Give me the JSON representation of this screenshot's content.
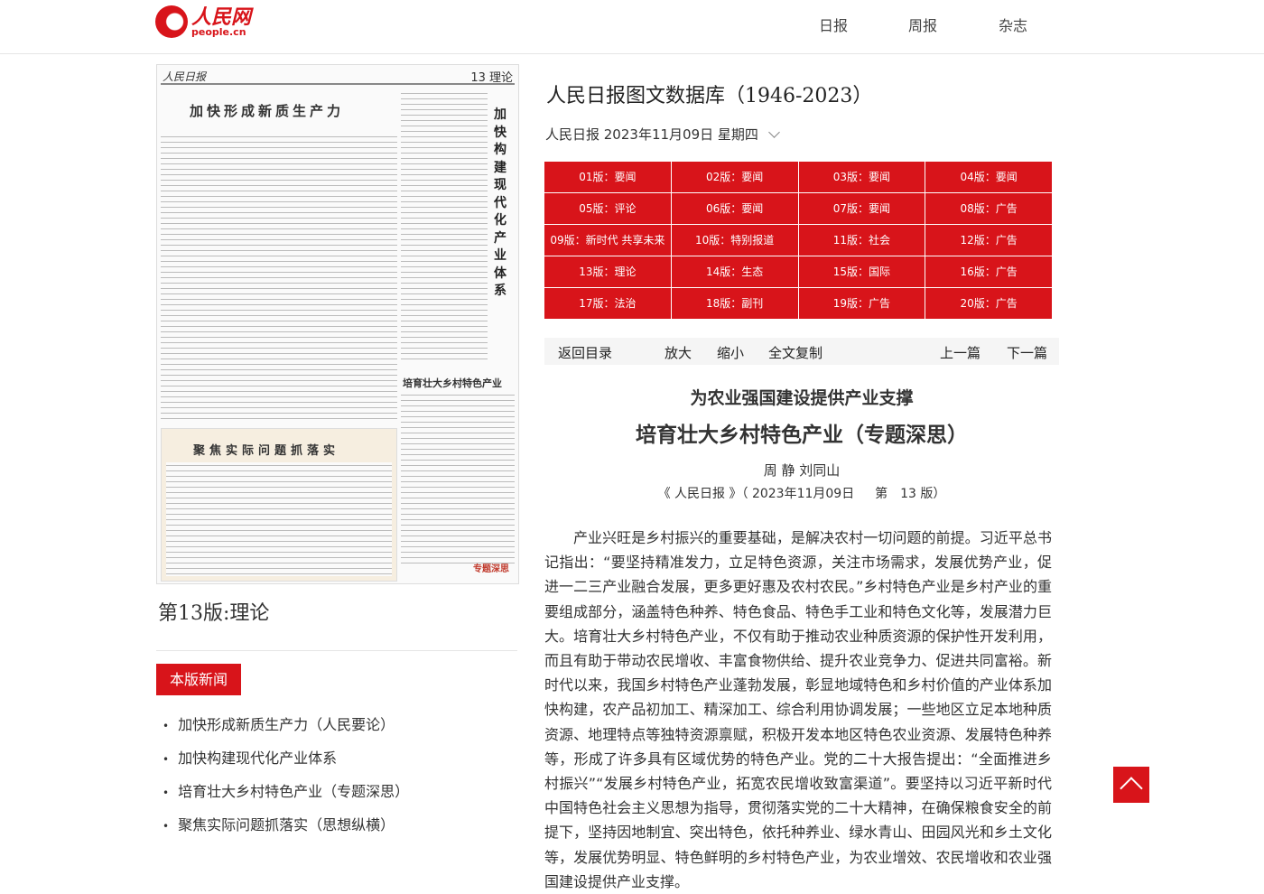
{
  "header": {
    "logo_cn": "人民网",
    "logo_en": "people.cn",
    "nav": [
      "日报",
      "周报",
      "杂志"
    ]
  },
  "paper": {
    "masthead": "人民日报",
    "page_label": "13 理论",
    "headline1": "加快形成新质生产力",
    "vertical": "加快构建现代化产业体系",
    "headline2": "培育壮大乡村特色产业",
    "headline3": "聚焦实际问题抓落实",
    "tag": "专题深思"
  },
  "left": {
    "page_title": "第13版:理论",
    "news_button": "本版新闻",
    "news": [
      "加快形成新质生产力（人民要论）",
      "加快构建现代化产业体系",
      "培育壮大乡村特色产业（专题深思）",
      "聚焦实际问题抓落实（思想纵横）"
    ]
  },
  "main": {
    "db_title": "人民日报图文数据库（1946-2023）",
    "dateline": "人民日报  2023年11月09日  星期四",
    "editions": [
      "01版：要闻",
      "02版：要闻",
      "03版：要闻",
      "04版：要闻",
      "05版：评论",
      "06版：要闻",
      "07版：要闻",
      "08版：广告",
      "09版：新时代 共享未来",
      "10版：特别报道",
      "11版：社会",
      "12版：广告",
      "13版：理论",
      "14版：生态",
      "15版：国际",
      "16版：广告",
      "17版：法治",
      "18版：副刊",
      "19版：广告",
      "20版：广告"
    ],
    "toolbar": {
      "back": "返回目录",
      "zoom_in": "放大",
      "zoom_out": "缩小",
      "copy": "全文复制",
      "prev": "上一篇",
      "next": "下一篇"
    },
    "subtitle": "为农业强国建设提供产业支撑",
    "title": "培育壮大乡村特色产业（专题深思）",
    "authors": "周 静 刘同山",
    "source": "《 人民日报 》（ 2023年11月09日 　 第　13 版）",
    "body": "产业兴旺是乡村振兴的重要基础，是解决农村一切问题的前提。习近平总书记指出：“要坚持精准发力，立足特色资源，关注市场需求，发展优势产业，促进一二三产业融合发展，更多更好惠及农村农民。”乡村特色产业是乡村产业的重要组成部分，涵盖特色种养、特色食品、特色手工业和特色文化等，发展潜力巨大。培育壮大乡村特色产业，不仅有助于推动农业种质资源的保护性开发利用，而且有助于带动农民增收、丰富食物供给、提升农业竞争力、促进共同富裕。新时代以来，我国乡村特色产业蓬勃发展，彰显地域特色和乡村价值的产业体系加快构建，农产品初加工、精深加工、综合利用协调发展；一些地区立足本地种质资源、地理特点等独特资源禀赋，积极开发本地区特色农业资源、发展特色种养等，形成了许多具有区域优势的特色产业。党的二十大报告提出：“全面推进乡村振兴”“发展乡村特色产业，拓宽农民增收致富渠道”。要坚持以习近平新时代中国特色社会主义思想为指导，贯彻落实党的二十大精神，在确保粮食安全的前提下，坚持因地制宜、突出特色，依托种养业、绿水青山、田园风光和乡土文化等，发展优势明显、特色鲜明的乡村特色产业，为农业增效、农民增收和农业强国建设提供产业支撑。"
  },
  "colors": {
    "brand": "#d8141a"
  }
}
